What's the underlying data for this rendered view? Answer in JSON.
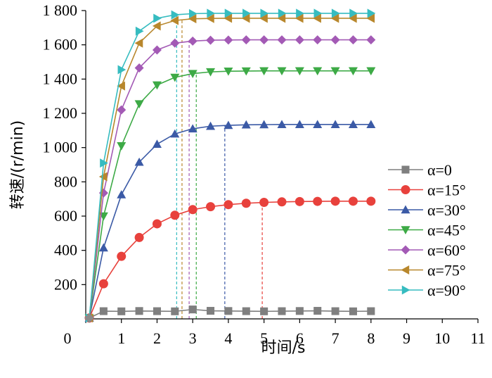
{
  "chart_data": {
    "type": "line",
    "xlabel": "时间/s",
    "ylabel": "转速/(r/min)",
    "xlim": [
      0,
      11
    ],
    "ylim": [
      0,
      1800
    ],
    "x_ticks": [
      "0",
      "1",
      "2",
      "3",
      "4",
      "5",
      "6",
      "7",
      "8",
      "9",
      "10",
      "11"
    ],
    "y_ticks": [
      "200",
      "400",
      "600",
      "800",
      "1 000",
      "1 200",
      "1 400",
      "1 600",
      "1 800"
    ],
    "grid": false,
    "legend_position": "right",
    "series": [
      {
        "name": "α=0",
        "color": "#7f7f7f",
        "marker": "square",
        "x": [
          0.5,
          1.0,
          1.5,
          2.0,
          2.5,
          3.0,
          3.5,
          4.0,
          4.5,
          5.0,
          5.5,
          6.0,
          6.5,
          7.0,
          7.5,
          8.0
        ],
        "y": [
          45,
          44,
          46,
          45,
          44,
          55,
          47,
          46,
          45,
          44,
          45,
          46,
          47,
          45,
          44,
          45
        ]
      },
      {
        "name": "α=15°",
        "color": "#e8413c",
        "marker": "circle",
        "x": [
          0.1,
          0.5,
          1.0,
          1.5,
          2.0,
          2.5,
          3.0,
          3.5,
          4.0,
          4.5,
          5.0,
          5.5,
          6.0,
          6.5,
          7.0,
          7.5,
          8.0
        ],
        "y": [
          5,
          205,
          365,
          475,
          555,
          605,
          638,
          655,
          667,
          675,
          680,
          683,
          685,
          686,
          687,
          687,
          687
        ]
      },
      {
        "name": "α=30°",
        "color": "#3b5aa6",
        "marker": "triangle-up",
        "x": [
          0.1,
          0.5,
          1.0,
          1.5,
          2.0,
          2.5,
          3.0,
          3.5,
          4.0,
          4.5,
          5.0,
          5.5,
          6.0,
          6.5,
          7.0,
          7.5,
          8.0
        ],
        "y": [
          5,
          415,
          725,
          915,
          1020,
          1080,
          1110,
          1125,
          1130,
          1133,
          1134,
          1135,
          1135,
          1135,
          1135,
          1135,
          1135
        ]
      },
      {
        "name": "α=45°",
        "color": "#3daa46",
        "marker": "triangle-down",
        "x": [
          0.1,
          0.5,
          1.0,
          1.5,
          2.0,
          2.5,
          3.0,
          3.5,
          4.0,
          4.5,
          5.0,
          5.5,
          6.0,
          6.5,
          7.0,
          7.5,
          8.0
        ],
        "y": [
          5,
          600,
          1010,
          1255,
          1365,
          1410,
          1432,
          1442,
          1446,
          1447,
          1448,
          1448,
          1448,
          1448,
          1448,
          1448,
          1448
        ]
      },
      {
        "name": "α=60°",
        "color": "#a35ab5",
        "marker": "diamond",
        "x": [
          0.1,
          0.5,
          1.0,
          1.5,
          2.0,
          2.5,
          3.0,
          3.5,
          4.0,
          4.5,
          5.0,
          5.5,
          6.0,
          6.5,
          7.0,
          7.5,
          8.0
        ],
        "y": [
          5,
          735,
          1220,
          1465,
          1570,
          1610,
          1622,
          1627,
          1628,
          1629,
          1629,
          1629,
          1629,
          1629,
          1629,
          1629,
          1629
        ]
      },
      {
        "name": "α=75°",
        "color": "#b8872c",
        "marker": "triangle-left",
        "x": [
          0.1,
          0.5,
          1.0,
          1.5,
          2.0,
          2.5,
          3.0,
          3.5,
          4.0,
          4.5,
          5.0,
          5.5,
          6.0,
          6.5,
          7.0,
          7.5,
          8.0
        ],
        "y": [
          5,
          830,
          1360,
          1610,
          1710,
          1742,
          1752,
          1754,
          1755,
          1755,
          1755,
          1755,
          1755,
          1755,
          1755,
          1755,
          1755
        ]
      },
      {
        "name": "α=90°",
        "color": "#36bcc0",
        "marker": "triangle-right",
        "x": [
          0.1,
          0.5,
          1.0,
          1.5,
          2.0,
          2.5,
          3.0,
          3.5,
          4.0,
          4.5,
          5.0,
          5.5,
          6.0,
          6.5,
          7.0,
          7.5,
          8.0
        ],
        "y": [
          5,
          910,
          1455,
          1680,
          1755,
          1775,
          1782,
          1784,
          1784,
          1784,
          1784,
          1784,
          1784,
          1784,
          1784,
          1784,
          1784
        ]
      }
    ],
    "reference_lines": [
      {
        "series": "α=15°",
        "x": 4.95,
        "y": 680
      },
      {
        "series": "α=30°",
        "x": 3.9,
        "y": 1130
      },
      {
        "series": "α=45°",
        "x": 3.1,
        "y": 1440
      },
      {
        "series": "α=60°",
        "x": 2.9,
        "y": 1622
      },
      {
        "series": "α=75°",
        "x": 2.7,
        "y": 1752
      },
      {
        "series": "α=90°",
        "x": 2.55,
        "y": 1780
      }
    ]
  }
}
